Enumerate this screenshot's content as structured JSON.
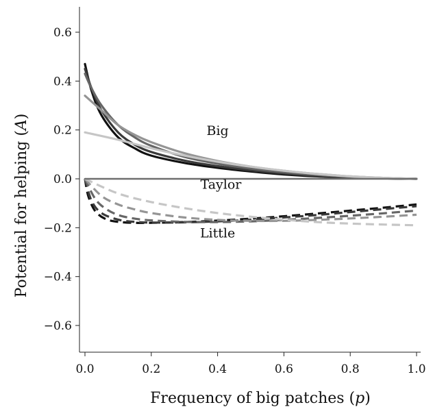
{
  "chart_data": {
    "type": "line",
    "xlabel": {
      "main": "Frequency of big patches (",
      "var": "p",
      "close": ")"
    },
    "ylabel": {
      "main": "Potential for helping (",
      "var": "A",
      "close": ")"
    },
    "xlim": [
      0,
      1
    ],
    "ylim": [
      -0.72,
      0.7
    ],
    "x_ticks": [
      {
        "value": 0.0,
        "label": "0.0"
      },
      {
        "value": 0.2,
        "label": "0.2"
      },
      {
        "value": 0.4,
        "label": "0.4"
      },
      {
        "value": 0.6,
        "label": "0.6"
      },
      {
        "value": 0.8,
        "label": "0.8"
      },
      {
        "value": 1.0,
        "label": "1.0"
      }
    ],
    "y_ticks": [
      {
        "value": 0.6,
        "label": "0.6"
      },
      {
        "value": 0.4,
        "label": "0.4"
      },
      {
        "value": 0.2,
        "label": "0.2"
      },
      {
        "value": 0.0,
        "label": "0.0"
      },
      {
        "value": -0.2,
        "label": "−0.2"
      },
      {
        "value": -0.4,
        "label": "−0.4"
      },
      {
        "value": -0.6,
        "label": "−0.6"
      }
    ],
    "grid": false,
    "legend": "none",
    "annotations": [
      {
        "text": "Big",
        "x": 0.4,
        "y": 0.18
      },
      {
        "text": "Taylor",
        "x": 0.41,
        "y": -0.04
      },
      {
        "text": "Little",
        "x": 0.4,
        "y": -0.24
      }
    ],
    "series": [
      {
        "group": "big",
        "style": "solid",
        "color": "#111111",
        "x": [
          0,
          0.02,
          0.05,
          0.1,
          0.15,
          0.2,
          0.3,
          0.4,
          0.5,
          0.6,
          0.7,
          0.8,
          0.9,
          1.0
        ],
        "y": [
          0.47,
          0.36,
          0.26,
          0.17,
          0.125,
          0.095,
          0.065,
          0.045,
          0.03,
          0.018,
          0.01,
          0.005,
          0.002,
          0
        ]
      },
      {
        "group": "big",
        "style": "solid",
        "color": "#3a3a3a",
        "x": [
          0,
          0.02,
          0.05,
          0.1,
          0.15,
          0.2,
          0.3,
          0.4,
          0.5,
          0.6,
          0.7,
          0.8,
          0.9,
          1.0
        ],
        "y": [
          0.45,
          0.37,
          0.28,
          0.19,
          0.14,
          0.11,
          0.075,
          0.052,
          0.035,
          0.022,
          0.012,
          0.006,
          0.002,
          0
        ]
      },
      {
        "group": "big",
        "style": "solid",
        "color": "#666666",
        "x": [
          0,
          0.02,
          0.05,
          0.1,
          0.15,
          0.2,
          0.3,
          0.4,
          0.5,
          0.6,
          0.7,
          0.8,
          0.9,
          1.0
        ],
        "y": [
          0.43,
          0.37,
          0.3,
          0.22,
          0.17,
          0.135,
          0.09,
          0.062,
          0.042,
          0.027,
          0.016,
          0.008,
          0.003,
          0
        ]
      },
      {
        "group": "big",
        "style": "solid",
        "color": "#959595",
        "x": [
          0,
          0.05,
          0.1,
          0.15,
          0.2,
          0.3,
          0.4,
          0.5,
          0.6,
          0.7,
          0.8,
          0.9,
          1.0
        ],
        "y": [
          0.34,
          0.28,
          0.22,
          0.18,
          0.15,
          0.105,
          0.073,
          0.05,
          0.033,
          0.02,
          0.01,
          0.004,
          0
        ]
      },
      {
        "group": "big",
        "style": "solid",
        "color": "#c6c6c6",
        "x": [
          0,
          0.1,
          0.2,
          0.3,
          0.4,
          0.5,
          0.6,
          0.7,
          0.8,
          0.9,
          1.0
        ],
        "y": [
          0.19,
          0.16,
          0.125,
          0.095,
          0.07,
          0.05,
          0.033,
          0.02,
          0.01,
          0.004,
          0
        ]
      },
      {
        "group": "taylor",
        "style": "solid",
        "color": "#6e6e6e",
        "x": [
          0,
          1.0
        ],
        "y": [
          0,
          0
        ]
      },
      {
        "group": "little",
        "style": "dashed",
        "color": "#111111",
        "x": [
          0,
          0.01,
          0.03,
          0.06,
          0.1,
          0.15,
          0.2,
          0.3,
          0.4,
          0.5,
          0.6,
          0.7,
          0.8,
          0.9,
          1.0
        ],
        "y": [
          0,
          -0.07,
          -0.13,
          -0.163,
          -0.176,
          -0.18,
          -0.18,
          -0.177,
          -0.171,
          -0.163,
          -0.153,
          -0.142,
          -0.13,
          -0.118,
          -0.105
        ]
      },
      {
        "group": "little",
        "style": "dashed",
        "color": "#3a3a3a",
        "x": [
          0,
          0.02,
          0.05,
          0.1,
          0.15,
          0.2,
          0.3,
          0.4,
          0.5,
          0.6,
          0.7,
          0.8,
          0.9,
          1.0
        ],
        "y": [
          0,
          -0.09,
          -0.14,
          -0.167,
          -0.176,
          -0.179,
          -0.178,
          -0.174,
          -0.167,
          -0.158,
          -0.148,
          -0.136,
          -0.124,
          -0.112
        ]
      },
      {
        "group": "little",
        "style": "dashed",
        "color": "#666666",
        "x": [
          0,
          0.03,
          0.06,
          0.1,
          0.15,
          0.2,
          0.3,
          0.4,
          0.5,
          0.6,
          0.7,
          0.8,
          0.9,
          1.0
        ],
        "y": [
          0,
          -0.08,
          -0.12,
          -0.148,
          -0.163,
          -0.17,
          -0.176,
          -0.177,
          -0.174,
          -0.168,
          -0.16,
          -0.151,
          -0.141,
          -0.13
        ]
      },
      {
        "group": "little",
        "style": "dashed",
        "color": "#959595",
        "x": [
          0,
          0.05,
          0.1,
          0.15,
          0.2,
          0.3,
          0.4,
          0.5,
          0.6,
          0.7,
          0.8,
          0.9,
          1.0
        ],
        "y": [
          0,
          -0.07,
          -0.105,
          -0.125,
          -0.14,
          -0.158,
          -0.168,
          -0.172,
          -0.172,
          -0.168,
          -0.162,
          -0.155,
          -0.147
        ]
      },
      {
        "group": "little",
        "style": "dashed",
        "color": "#c6c6c6",
        "x": [
          0,
          0.1,
          0.2,
          0.3,
          0.4,
          0.5,
          0.6,
          0.7,
          0.8,
          0.9,
          1.0
        ],
        "y": [
          0,
          -0.06,
          -0.095,
          -0.12,
          -0.14,
          -0.155,
          -0.167,
          -0.177,
          -0.183,
          -0.187,
          -0.19
        ]
      }
    ]
  }
}
